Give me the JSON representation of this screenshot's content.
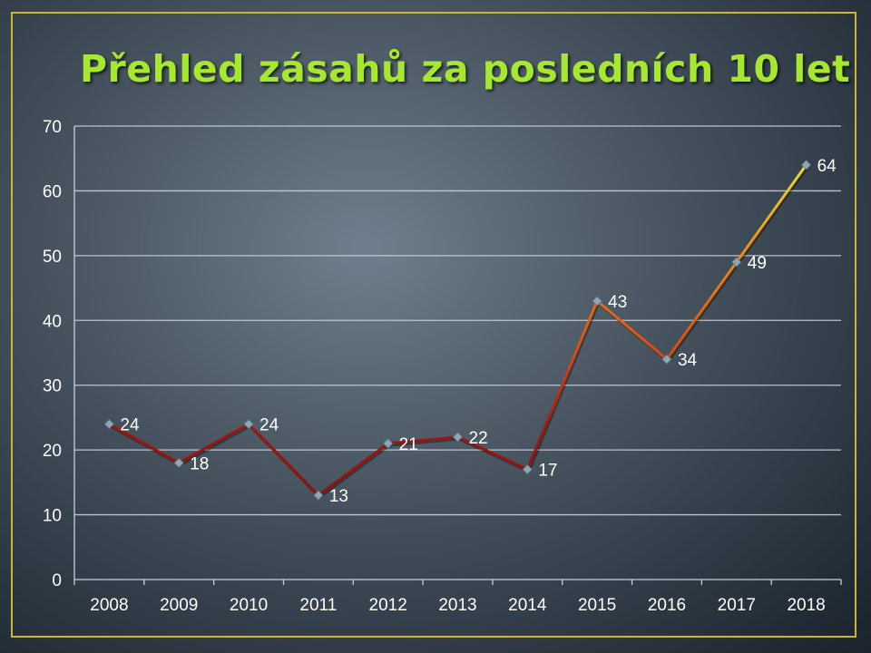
{
  "slide": {
    "title": "Přehled zásahů za posledních 10 let"
  },
  "chart_data": {
    "type": "line",
    "title": "",
    "xlabel": "",
    "ylabel": "",
    "categories": [
      "2008",
      "2009",
      "2010",
      "2011",
      "2012",
      "2013",
      "2014",
      "2015",
      "2016",
      "2017",
      "2018"
    ],
    "series": [
      {
        "values": [
          24,
          18,
          24,
          13,
          21,
          22,
          17,
          43,
          34,
          49,
          64
        ]
      }
    ],
    "ylim": [
      0,
      70
    ],
    "yticks": [
      "0",
      "10",
      "20",
      "30",
      "40",
      "50",
      "60",
      "70"
    ],
    "grid": true,
    "data_labels": true,
    "marker": "diamond",
    "colors": {
      "line_low": "#8b0c0c",
      "line_mid": "#e85a10",
      "line_high": "#f2dc20",
      "marker": "#8aa8b8",
      "grid": "#c9d1d8",
      "frame": "#c8b830",
      "title": "#a6e830"
    }
  }
}
